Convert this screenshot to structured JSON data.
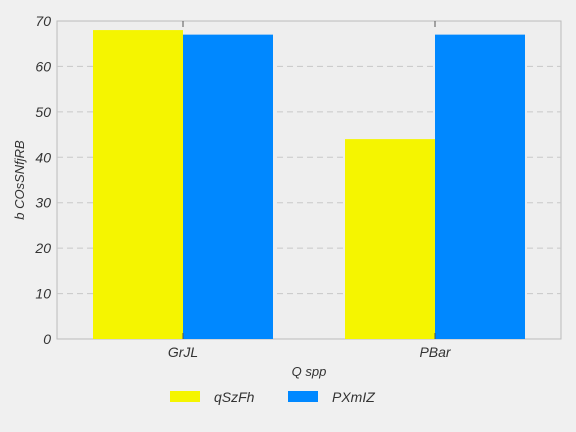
{
  "chart_data": {
    "type": "bar",
    "categories": [
      "GrJL",
      "PBar"
    ],
    "series": [
      {
        "name": "qSzFh",
        "values": [
          68,
          44
        ]
      },
      {
        "name": "PXmIZ",
        "values": [
          67,
          67
        ]
      }
    ],
    "title": "",
    "xlabel": "Q spp",
    "ylabel": "b COsSNfjRB",
    "ylim": [
      0,
      70
    ],
    "yticks": [
      0,
      10,
      20,
      30,
      40,
      50,
      60,
      70
    ],
    "grid": "horizontal-dashed",
    "legend_position": "bottom-center",
    "colors": [
      "#f5f500",
      "#0088ff"
    ],
    "plot_background": "#eeeeee"
  }
}
